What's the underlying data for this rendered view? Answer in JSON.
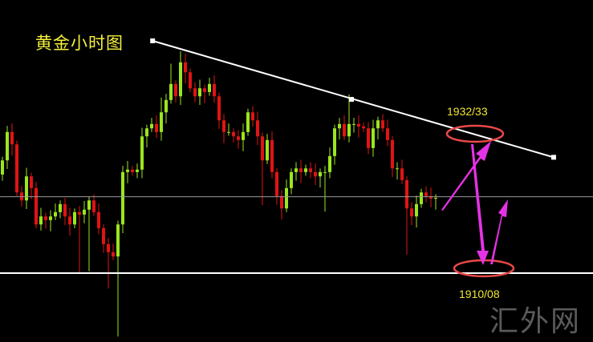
{
  "title": "黄金小时图",
  "watermark": "汇外网",
  "chart_data": {
    "type": "candlestick",
    "title": "黄金小时图",
    "colors": {
      "up": "#9be61e",
      "down": "#e01414",
      "trendline": "#ffffff",
      "support": "#ffffff",
      "midline": "#9a9a9a",
      "arrows": "#e632e6",
      "circles": "#e84848",
      "labels": "#f0e632"
    },
    "ylim": [
      1899,
      1948
    ],
    "first_open": 1926.0,
    "closes": [
      1928.3,
      1932.9,
      1930.9,
      1923.1,
      1921.8,
      1925.7,
      1923.8,
      1917.9,
      1919.2,
      1918.6,
      1919.2,
      1919.9,
      1921.2,
      1919.2,
      1917.9,
      1919.9,
      1919.5,
      1920.3,
      1921.8,
      1919.9,
      1917.3,
      1914.7,
      1913.4,
      1912.7,
      1917.9,
      1926.4,
      1926.8,
      1926.4,
      1926.8,
      1932.2,
      1933.5,
      1934.2,
      1932.9,
      1936.1,
      1938.1,
      1940.7,
      1938.7,
      1944.2,
      1942.6,
      1940.0,
      1938.7,
      1940.0,
      1939.4,
      1940.7,
      1938.7,
      1934.8,
      1932.9,
      1932.9,
      1932.2,
      1931.6,
      1932.9,
      1936.1,
      1934.8,
      1932.2,
      1928.3,
      1931.6,
      1926.4,
      1922.5,
      1920.5,
      1923.8,
      1926.4,
      1927.0,
      1926.4,
      1927.0,
      1926.4,
      1925.7,
      1926.4,
      1926.4,
      1929.0,
      1933.5,
      1934.2,
      1932.2,
      1934.2,
      1934.2,
      1933.8,
      1933.5,
      1930.3,
      1933.5,
      1934.8,
      1933.5,
      1931.6,
      1927.0,
      1927.0,
      1925.1,
      1920.5,
      1919.2,
      1921.2,
      1923.1,
      1922.5,
      1922.1,
      1922.2
    ],
    "extreme_highs": {
      "37": 1946.0,
      "35": 1944.0,
      "72": 1939.0,
      "33": 1938.5
    },
    "extreme_lows": {
      "16": 1910.1,
      "22": 1907.5,
      "24": 1899.7,
      "54": 1921.0,
      "67": 1920.0,
      "84": 1913.0,
      "18": 1910.3
    },
    "trendline": {
      "points": [
        [
          31.2,
          1947.7
        ],
        [
          72.5,
          1938.2
        ],
        [
          114.5,
          1928.8
        ]
      ]
    },
    "support_level": 1910.0,
    "midline_level": 1922.4,
    "annotations": [
      {
        "text": "1932/33",
        "price": 1932.5
      },
      {
        "text": "1910/08",
        "price": 1909.0
      }
    ]
  }
}
